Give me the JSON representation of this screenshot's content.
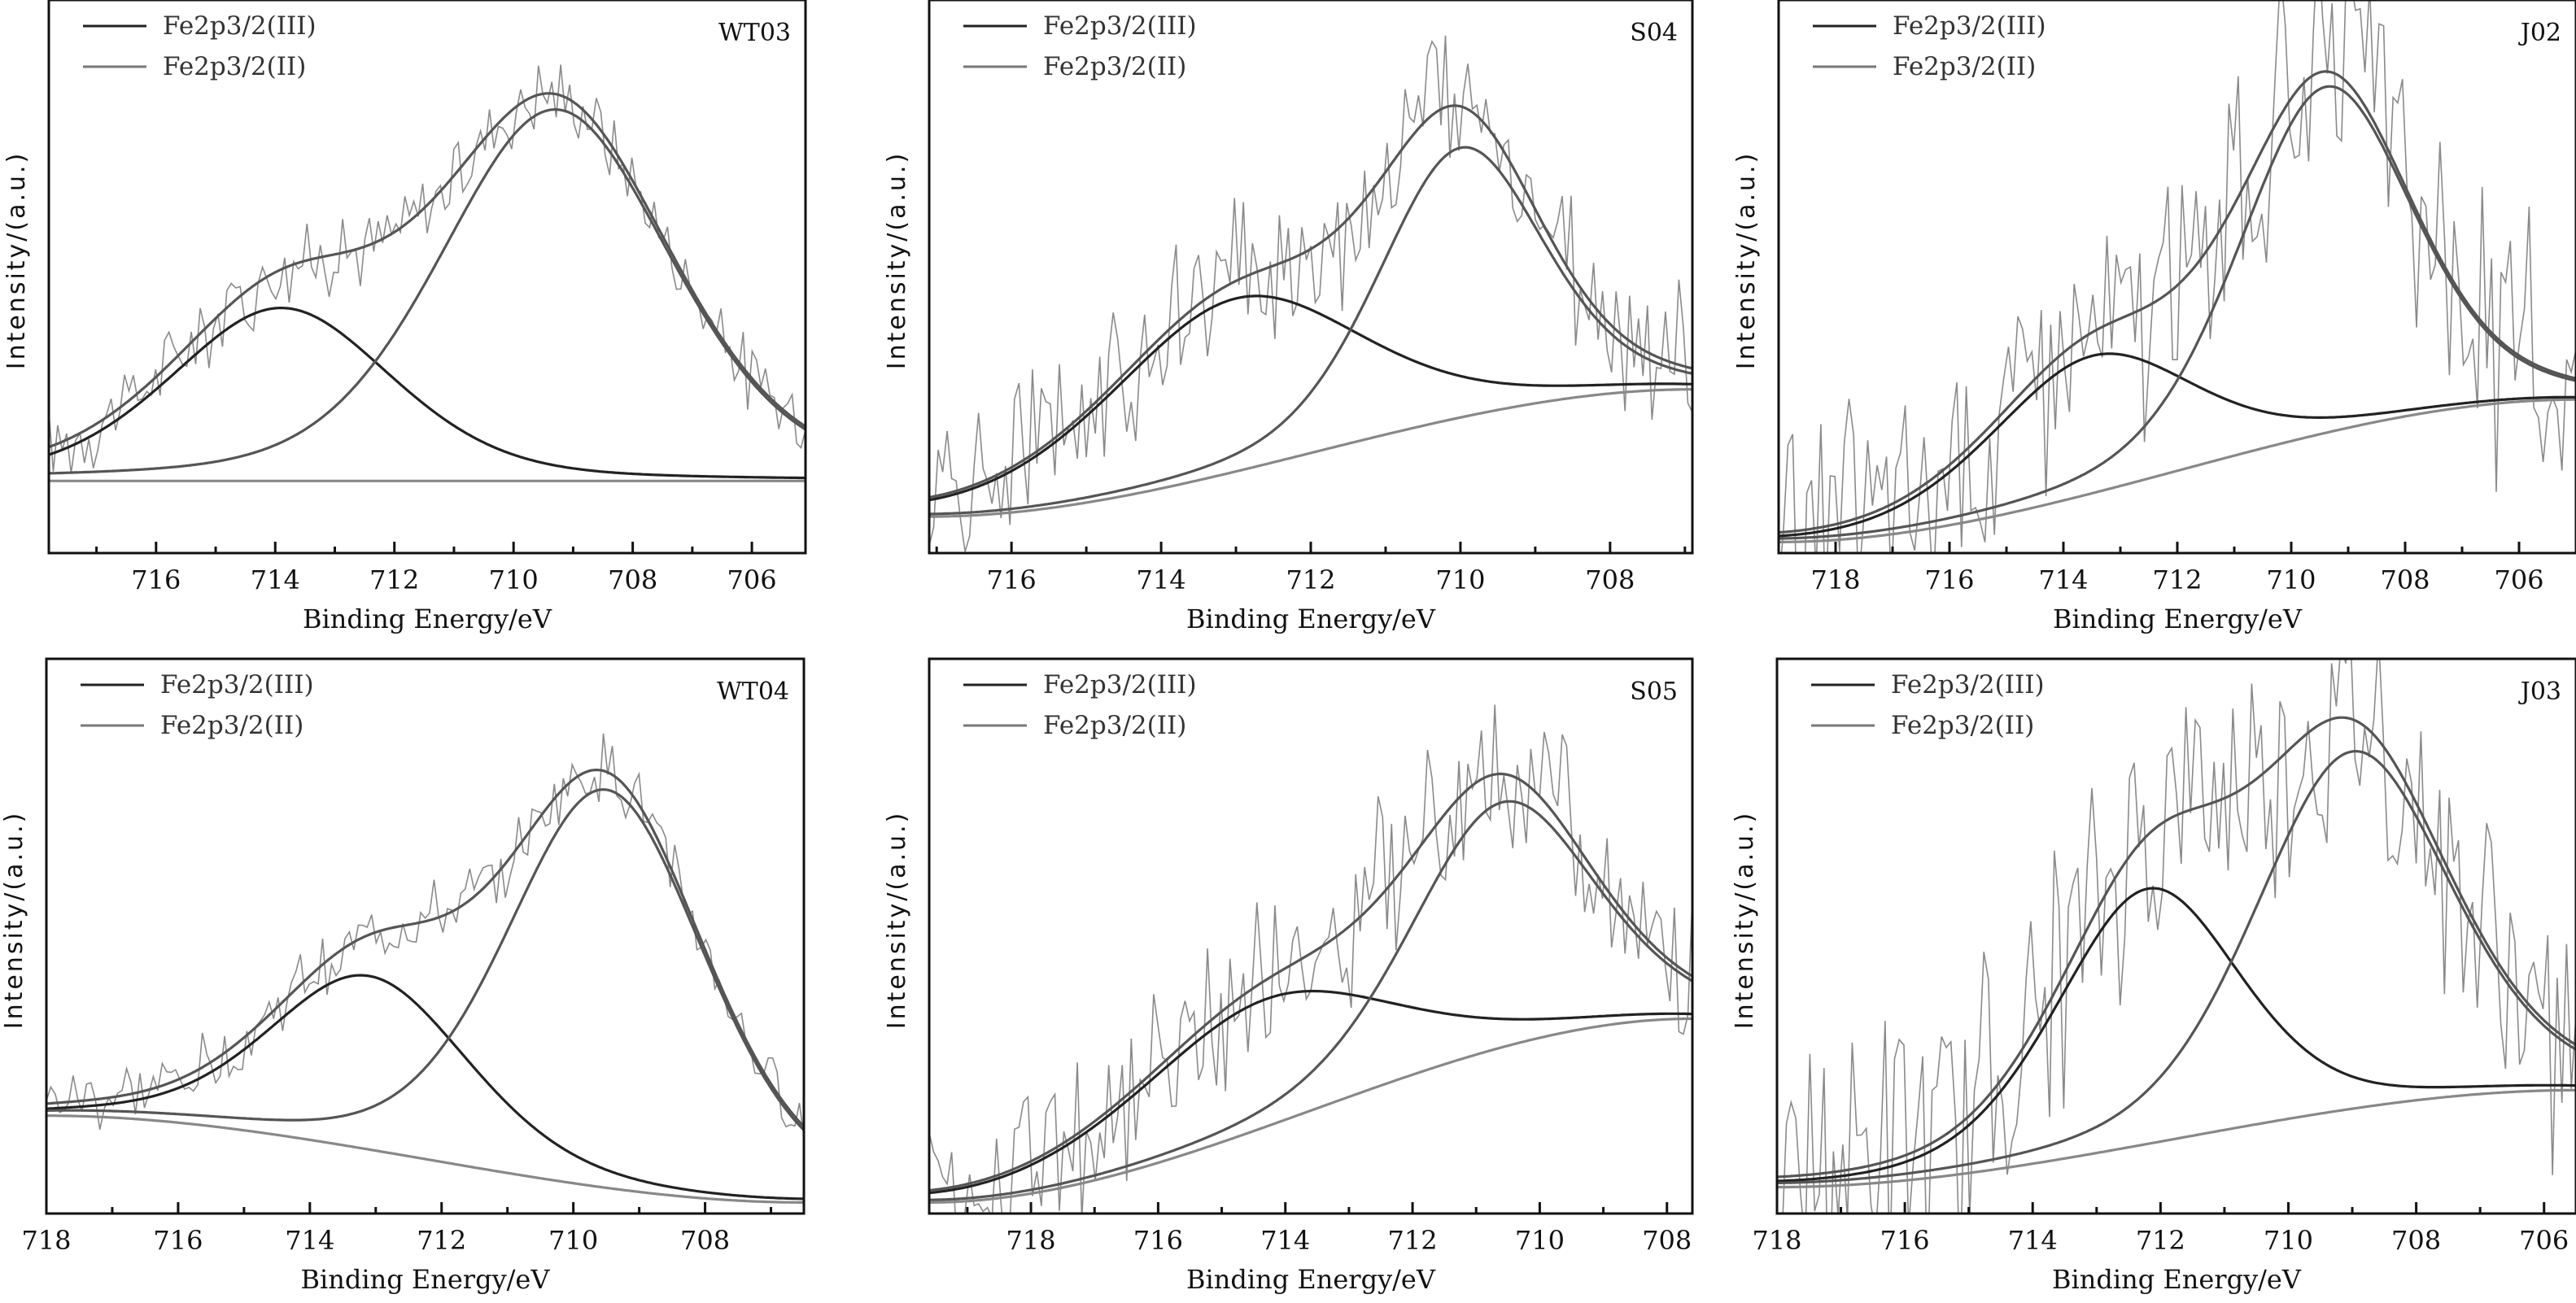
{
  "colors": {
    "frame": "#111111",
    "raw_spectrum": "#8a8a8a",
    "envelope": "#555555",
    "fe3_component": "#555555",
    "fe2_component": "#222222",
    "background": "#888888"
  },
  "chart_data": [
    {
      "type": "line",
      "sample": "WT03",
      "xlabel": "Binding Energy/eV",
      "ylabel": "Intensity/(a.u.)",
      "xlim": [
        717.8,
        705.1
      ],
      "x_reversed": true,
      "xticks": [
        716,
        714,
        712,
        710,
        708,
        706
      ],
      "xtick_labels": [
        "716",
        "714",
        "712",
        "710",
        "708",
        "706"
      ],
      "minor_tick_step": 1,
      "ylim": [
        0,
        1
      ],
      "legend": [
        "Fe2p3/2(III)",
        "Fe2p3/2(II)"
      ],
      "legend_position": "top-left",
      "grid": false,
      "background_level": [
        0.12,
        0.12
      ],
      "peaks": [
        {
          "name": "Fe2p3/2(III)",
          "center": 709.3,
          "height": 0.73,
          "fwhm": 4.6
        },
        {
          "name": "Fe2p3/2(II)",
          "center": 713.9,
          "height": 0.34,
          "fwhm": 4.4
        }
      ],
      "noise": 0.06
    },
    {
      "type": "line",
      "sample": "S04",
      "xlabel": "Binding Energy/eV",
      "ylabel": "Intensity/(a.u.)",
      "xlim": [
        717.1,
        706.9
      ],
      "x_reversed": true,
      "xticks": [
        716,
        714,
        712,
        710,
        708
      ],
      "xtick_labels": [
        "716",
        "714",
        "712",
        "710",
        "708"
      ],
      "minor_tick_step": 1,
      "ylim": [
        0,
        1
      ],
      "legend": [
        "Fe2p3/2(III)",
        "Fe2p3/2(II)"
      ],
      "legend_position": "top-left",
      "grid": false,
      "background_level": [
        0.05,
        0.3
      ],
      "peaks": [
        {
          "name": "Fe2p3/2(III)",
          "center": 710.0,
          "height": 0.53,
          "fwhm": 2.6
        },
        {
          "name": "Fe2p3/2(II)",
          "center": 713.0,
          "height": 0.34,
          "fwhm": 4.0
        }
      ],
      "noise": 0.12
    },
    {
      "type": "line",
      "sample": "J02",
      "xlabel": "Binding Energy/eV",
      "ylabel": "Intensity/(a.u.)",
      "xlim": [
        719.0,
        705.0
      ],
      "x_reversed": true,
      "xticks": [
        718,
        716,
        714,
        712,
        710,
        708,
        706
      ],
      "xtick_labels": [
        "718",
        "716",
        "714",
        "712",
        "710",
        "708",
        "706"
      ],
      "minor_tick_step": 1,
      "ylim": [
        0,
        1
      ],
      "legend": [
        "Fe2p3/2(III)",
        "Fe2p3/2(II)"
      ],
      "legend_position": "top-left",
      "grid": false,
      "background_level": [
        0.0,
        0.28
      ],
      "peaks": [
        {
          "name": "Fe2p3/2(III)",
          "center": 709.4,
          "height": 0.68,
          "fwhm": 3.6
        },
        {
          "name": "Fe2p3/2(II)",
          "center": 713.5,
          "height": 0.27,
          "fwhm": 4.2
        }
      ],
      "noise": 0.2
    },
    {
      "type": "line",
      "sample": "WT04",
      "xlabel": "Binding Energy/eV",
      "ylabel": "Intensity/(a.u.)",
      "xlim": [
        718.0,
        706.5
      ],
      "x_reversed": true,
      "xticks": [
        718,
        716,
        714,
        712,
        710,
        708
      ],
      "xtick_labels": [
        "718",
        "716",
        "714",
        "712",
        "710",
        "708"
      ],
      "minor_tick_step": 1,
      "ylim": [
        0,
        1
      ],
      "legend": [
        "Fe2p3/2(III)",
        "Fe2p3/2(II)"
      ],
      "legend_position": "top-left",
      "grid": false,
      "background_level": [
        0.17,
        0.0
      ],
      "peaks": [
        {
          "name": "Fe2p3/2(III)",
          "center": 709.5,
          "height": 0.78,
          "fwhm": 3.6
        },
        {
          "name": "Fe2p3/2(II)",
          "center": 713.1,
          "height": 0.34,
          "fwhm": 3.6
        }
      ],
      "noise": 0.05
    },
    {
      "type": "line",
      "sample": "S05",
      "xlabel": "Binding Energy/eV",
      "ylabel": "Intensity/(a.u.)",
      "xlim": [
        719.6,
        707.6
      ],
      "x_reversed": true,
      "xticks": [
        718,
        716,
        714,
        712,
        710,
        708
      ],
      "xtick_labels": [
        "718",
        "716",
        "714",
        "712",
        "710",
        "708"
      ],
      "minor_tick_step": 1,
      "ylim": [
        0,
        1
      ],
      "legend": [
        "Fe2p3/2(III)",
        "Fe2p3/2(II)"
      ],
      "legend_position": "top-left",
      "grid": false,
      "background_level": [
        0.0,
        0.36
      ],
      "peaks": [
        {
          "name": "Fe2p3/2(III)",
          "center": 710.6,
          "height": 0.48,
          "fwhm": 3.4
        },
        {
          "name": "Fe2p3/2(II)",
          "center": 714.3,
          "height": 0.25,
          "fwhm": 4.8
        }
      ],
      "noise": 0.13
    },
    {
      "type": "line",
      "sample": "J03",
      "xlabel": "Binding Energy/eV",
      "ylabel": "Intensity/(a.u.)",
      "xlim": [
        718.0,
        705.5
      ],
      "x_reversed": true,
      "xticks": [
        718,
        716,
        714,
        712,
        710,
        708,
        706
      ],
      "xtick_labels": [
        "718",
        "716",
        "714",
        "712",
        "710",
        "708",
        "706"
      ],
      "minor_tick_step": 1,
      "ylim": [
        0,
        1
      ],
      "legend": [
        "Fe2p3/2(III)",
        "Fe2p3/2(II)"
      ],
      "legend_position": "top-left",
      "grid": false,
      "background_level": [
        0.03,
        0.22
      ],
      "peaks": [
        {
          "name": "Fe2p3/2(III)",
          "center": 709.0,
          "height": 0.7,
          "fwhm": 3.6
        },
        {
          "name": "Fe2p3/2(II)",
          "center": 712.2,
          "height": 0.5,
          "fwhm": 3.4
        }
      ],
      "noise": 0.22
    }
  ]
}
